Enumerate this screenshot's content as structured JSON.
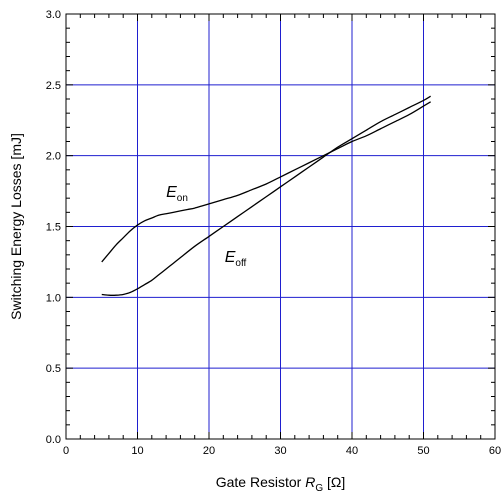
{
  "chart_data": {
    "type": "line",
    "xlabel_prefix": "Gate Resistor ",
    "xlabel_symbol": "R",
    "xlabel_subscript": "G",
    "xlabel_unit": " [Ω]",
    "ylabel": "Switching Energy Losses [mJ]",
    "xlim": [
      0,
      60
    ],
    "ylim": [
      0,
      3.0
    ],
    "x_ticks": [
      0,
      10,
      20,
      30,
      40,
      50,
      60
    ],
    "y_ticks": [
      0.0,
      0.5,
      1.0,
      1.5,
      2.0,
      2.5,
      3.0
    ],
    "x_tick_labels": [
      "0",
      "10",
      "20",
      "30",
      "40",
      "50",
      "60"
    ],
    "y_tick_labels": [
      "0.0",
      "0.5",
      "1.0",
      "1.5",
      "2.0",
      "2.5",
      "3.0"
    ],
    "grid": true,
    "grid_color": "#1f1fcf",
    "series": [
      {
        "name": "E_on",
        "label_main": "E",
        "label_sub": "on",
        "color": "#000000",
        "x": [
          5,
          6,
          7,
          8,
          9,
          10,
          11,
          12,
          13,
          14,
          15,
          16,
          17,
          18,
          19,
          20,
          22,
          24,
          26,
          28,
          30,
          32,
          34,
          36,
          38,
          40,
          42,
          44,
          46,
          48,
          50,
          51
        ],
        "y": [
          1.25,
          1.31,
          1.37,
          1.42,
          1.47,
          1.51,
          1.54,
          1.56,
          1.58,
          1.59,
          1.6,
          1.61,
          1.62,
          1.63,
          1.645,
          1.66,
          1.69,
          1.72,
          1.76,
          1.8,
          1.85,
          1.9,
          1.95,
          2.0,
          2.05,
          2.1,
          2.14,
          2.19,
          2.24,
          2.29,
          2.35,
          2.38
        ]
      },
      {
        "name": "E_off",
        "label_main": "E",
        "label_sub": "off",
        "color": "#000000",
        "x": [
          5,
          6,
          7,
          8,
          9,
          10,
          11,
          12,
          13,
          14,
          15,
          16,
          18,
          20,
          22,
          24,
          26,
          28,
          30,
          32,
          34,
          36,
          38,
          40,
          42,
          44,
          46,
          48,
          50,
          51
        ],
        "y": [
          1.02,
          1.015,
          1.015,
          1.02,
          1.035,
          1.06,
          1.09,
          1.12,
          1.16,
          1.2,
          1.24,
          1.28,
          1.36,
          1.43,
          1.5,
          1.57,
          1.64,
          1.71,
          1.78,
          1.85,
          1.92,
          1.99,
          2.06,
          2.12,
          2.18,
          2.24,
          2.29,
          2.34,
          2.39,
          2.42
        ]
      }
    ]
  }
}
